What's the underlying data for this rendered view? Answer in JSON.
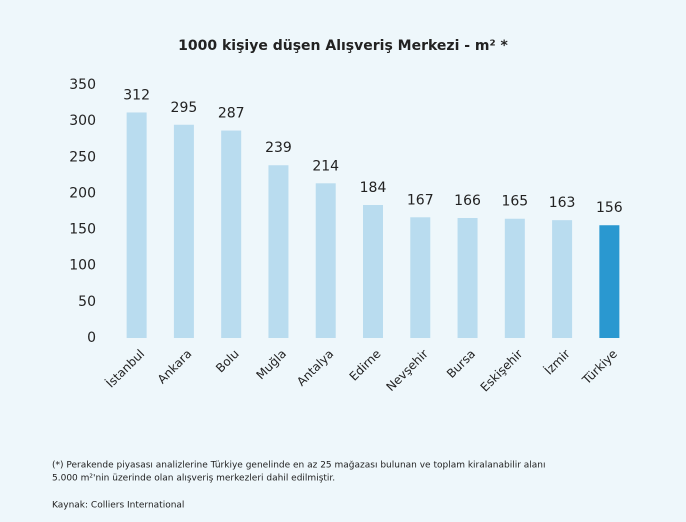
{
  "chart_data": {
    "type": "bar",
    "title": "1000 kişiye düşen Alışveriş Merkezi - m² *",
    "categories": [
      "İstanbul",
      "Ankara",
      "Bolu",
      "Muğla",
      "Antalya",
      "Edirne",
      "Nevşehir",
      "Bursa",
      "Eskişehir",
      "İzmir",
      "Türkiye"
    ],
    "values": [
      312,
      295,
      287,
      239,
      214,
      184,
      167,
      166,
      165,
      163,
      156
    ],
    "colors": [
      "#b9dcef",
      "#b9dcef",
      "#b9dcef",
      "#b9dcef",
      "#b9dcef",
      "#b9dcef",
      "#b9dcef",
      "#b9dcef",
      "#b9dcef",
      "#b9dcef",
      "#2a98d0"
    ],
    "ylim": [
      0,
      350
    ],
    "yticks": [
      0,
      50,
      100,
      150,
      200,
      250,
      300,
      350
    ]
  },
  "notes": [
    "(*) Perakende piyasası analizlerine Türkiye genelinde en az 25 mağazası bulunan ve toplam kiralanabilir alanı",
    "5.000 m²'nin üzerinde olan alışveriş merkezleri dahil edilmiştir."
  ],
  "source": "Kaynak: Colliers International"
}
